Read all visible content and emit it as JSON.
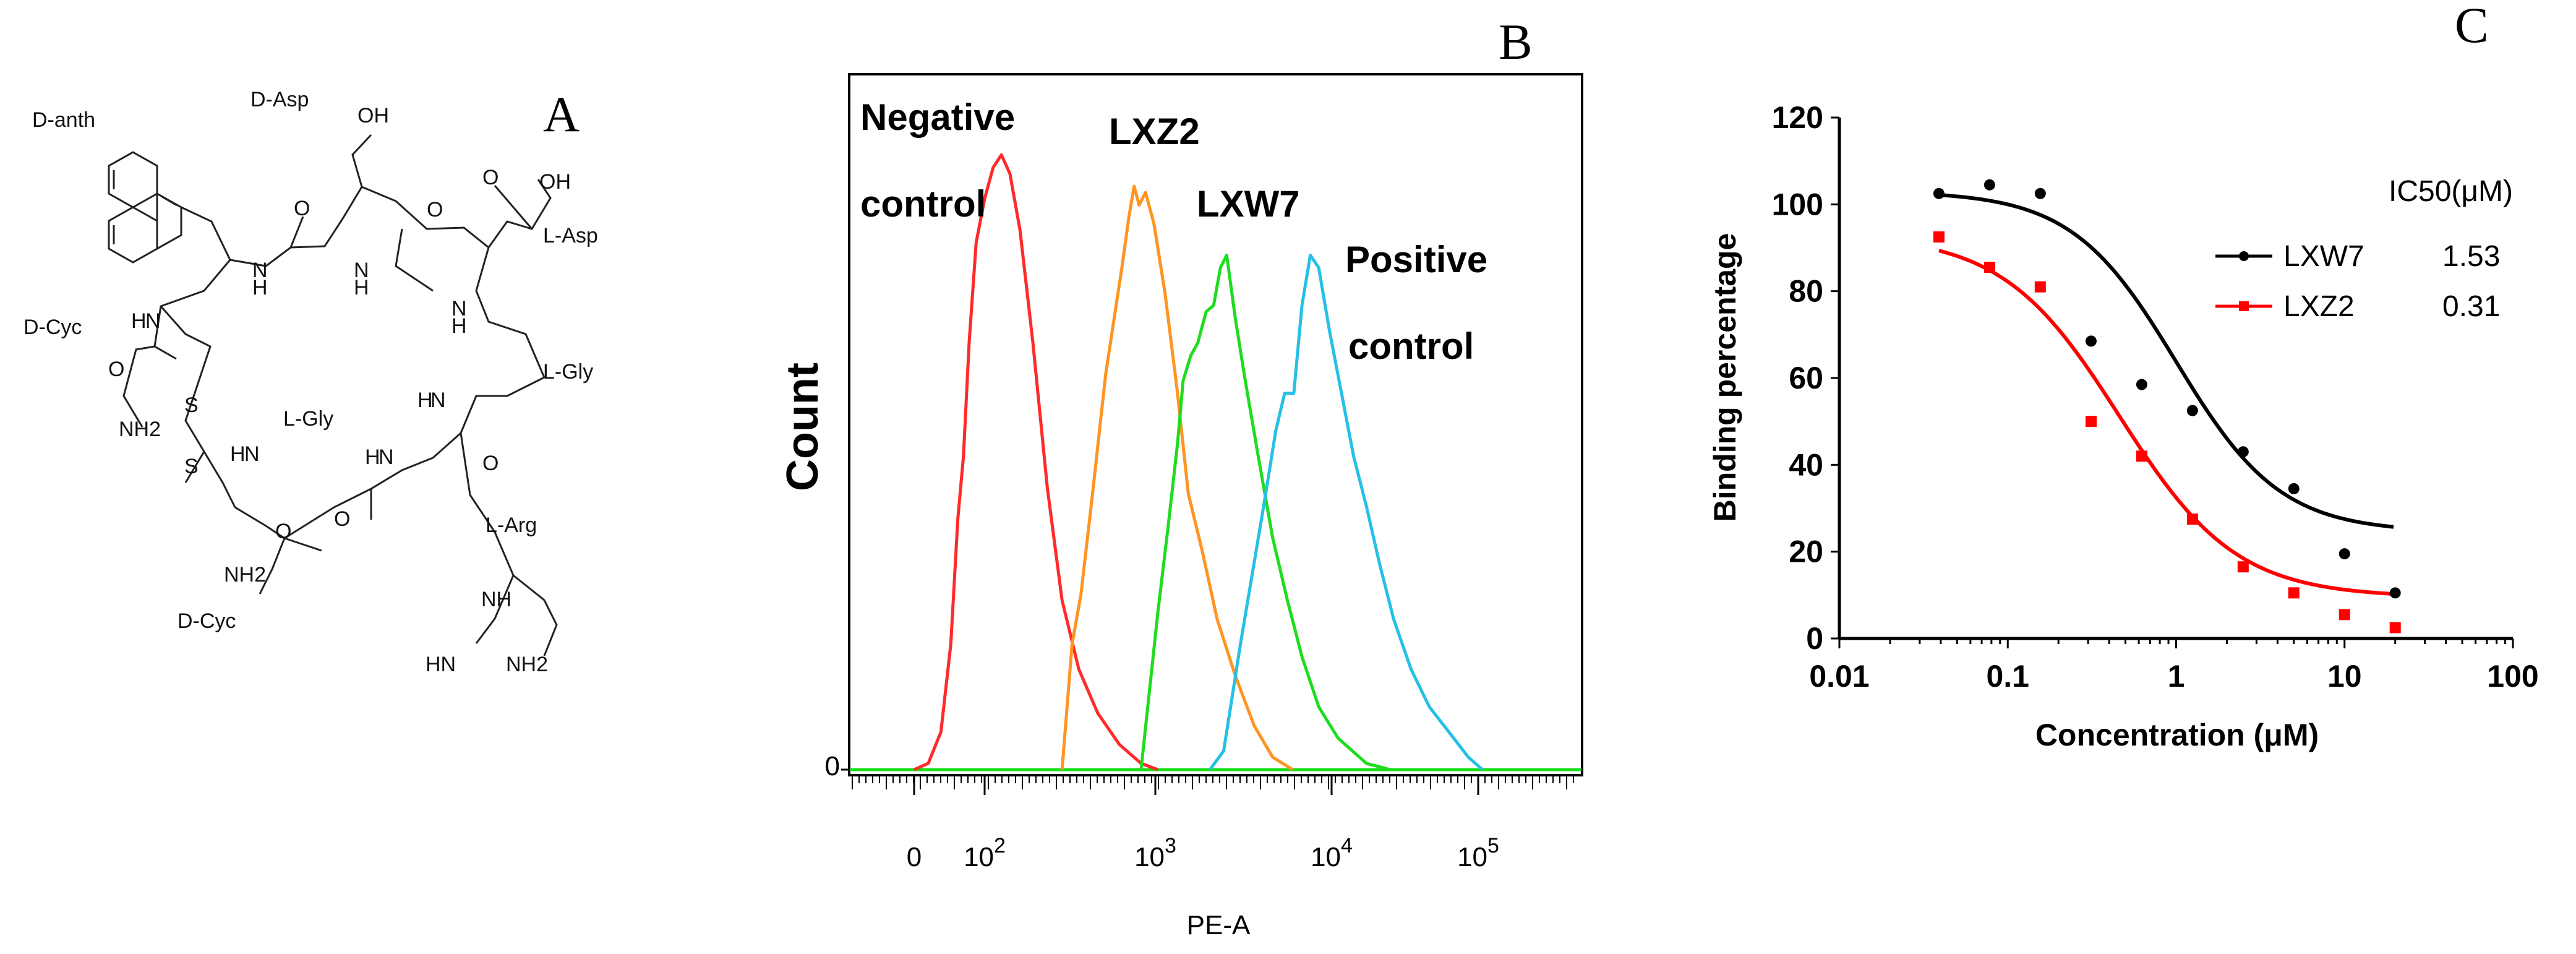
{
  "panel_a": {
    "letter": "A",
    "residues": [
      "D-anth",
      "D-Asp",
      "L-Asp",
      "D-Cyc",
      "L-Gly",
      "L-Gly",
      "L-Arg",
      "D-Cyc"
    ],
    "atoms": {
      "oh1": "OH",
      "oh2": "OH",
      "o": "O",
      "h": "H",
      "n": "N",
      "s": "S",
      "nh2": "NH2",
      "hn": "HN",
      "nh": "NH"
    }
  },
  "chart_data": [
    {
      "type": "histogram-overlay",
      "panel": "B",
      "ylabel": "Count",
      "xlabel": "PE-A",
      "x_ticks": [
        "0",
        "10^2",
        "10^3",
        "10^4",
        "10^5"
      ],
      "y_ticks": [
        "0"
      ],
      "series": [
        {
          "name": "Negative control",
          "label_lines": [
            "Negative",
            "control"
          ],
          "color": "#ff2a2a",
          "peak": 120,
          "points": [
            [
              0,
              0
            ],
            [
              20,
              0.01
            ],
            [
              38,
              0.06
            ],
            [
              52,
              0.2
            ],
            [
              62,
              0.4
            ],
            [
              70,
              0.5
            ],
            [
              78,
              0.68
            ],
            [
              88,
              0.84
            ],
            [
              100,
              0.91
            ],
            [
              112,
              0.96
            ],
            [
              125,
              0.98
            ],
            [
              140,
              0.95
            ],
            [
              160,
              0.86
            ],
            [
              190,
              0.68
            ],
            [
              230,
              0.45
            ],
            [
              280,
              0.27
            ],
            [
              350,
              0.16
            ],
            [
              450,
              0.09
            ],
            [
              600,
              0.04
            ],
            [
              800,
              0.01
            ],
            [
              1000,
              0
            ]
          ]
        },
        {
          "name": "LXZ2",
          "label_lines": [
            "LXZ2"
          ],
          "color": "#ff9422",
          "peak": 750,
          "points": [
            [
              280,
              0
            ],
            [
              320,
              0.2
            ],
            [
              360,
              0.28
            ],
            [
              420,
              0.44
            ],
            [
              500,
              0.63
            ],
            [
              560,
              0.72
            ],
            [
              620,
              0.8
            ],
            [
              680,
              0.88
            ],
            [
              730,
              0.93
            ],
            [
              780,
              0.9
            ],
            [
              850,
              0.92
            ],
            [
              950,
              0.87
            ],
            [
              1100,
              0.76
            ],
            [
              1300,
              0.6
            ],
            [
              1500,
              0.44
            ],
            [
              1800,
              0.35
            ],
            [
              2200,
              0.24
            ],
            [
              2800,
              0.15
            ],
            [
              3600,
              0.07
            ],
            [
              4600,
              0.02
            ],
            [
              6000,
              0
            ]
          ]
        },
        {
          "name": "LXW7",
          "label_lines": [
            "LXW7"
          ],
          "color": "#1fdc1f",
          "peak": 2400,
          "points": [
            [
              800,
              0
            ],
            [
              1000,
              0.25
            ],
            [
              1150,
              0.39
            ],
            [
              1300,
              0.52
            ],
            [
              1400,
              0.62
            ],
            [
              1550,
              0.66
            ],
            [
              1700,
              0.68
            ],
            [
              1900,
              0.73
            ],
            [
              2100,
              0.74
            ],
            [
              2300,
              0.8
            ],
            [
              2500,
              0.82
            ],
            [
              2800,
              0.72
            ],
            [
              3200,
              0.62
            ],
            [
              3800,
              0.5
            ],
            [
              4600,
              0.37
            ],
            [
              5600,
              0.27
            ],
            [
              6800,
              0.18
            ],
            [
              8500,
              0.1
            ],
            [
              11000,
              0.05
            ],
            [
              16000,
              0.01
            ],
            [
              22000,
              0
            ]
          ]
        },
        {
          "name": "Positive control",
          "label_lines": [
            "Positive",
            "control"
          ],
          "color": "#26c0e6",
          "peak": 7600,
          "points": [
            [
              2000,
              0
            ],
            [
              2400,
              0.03
            ],
            [
              3000,
              0.2
            ],
            [
              3600,
              0.33
            ],
            [
              4200,
              0.44
            ],
            [
              4800,
              0.54
            ],
            [
              5400,
              0.6
            ],
            [
              6100,
              0.6
            ],
            [
              6800,
              0.74
            ],
            [
              7600,
              0.82
            ],
            [
              8500,
              0.8
            ],
            [
              9800,
              0.7
            ],
            [
              11500,
              0.6
            ],
            [
              13500,
              0.5
            ],
            [
              16000,
              0.42
            ],
            [
              19000,
              0.33
            ],
            [
              23000,
              0.24
            ],
            [
              29000,
              0.16
            ],
            [
              37000,
              0.1
            ],
            [
              48000,
              0.06
            ],
            [
              62000,
              0.02
            ],
            [
              75000,
              0
            ]
          ]
        }
      ]
    },
    {
      "type": "scatter",
      "panel": "C",
      "ylabel": "Binding percentage",
      "xlabel": "Concentration (μM)",
      "xlim": [
        0.01,
        100
      ],
      "ylim": [
        0,
        120
      ],
      "x_ticks": [
        "0.01",
        "0.1",
        "1",
        "10",
        "100"
      ],
      "y_ticks": [
        "0",
        "20",
        "40",
        "60",
        "80",
        "100",
        "120"
      ],
      "legend_title": "IC50(μM)",
      "series": [
        {
          "name": "LXW7",
          "ic50": "1.53",
          "color": "#000000",
          "marker": "circle",
          "x": [
            0.039,
            0.078,
            0.156,
            0.3125,
            0.625,
            1.25,
            2.5,
            5,
            10,
            20
          ],
          "y": [
            102.5,
            104.5,
            102.5,
            68.5,
            58.5,
            52.5,
            43,
            34.5,
            19.5,
            10.5
          ],
          "fit": {
            "top": 103,
            "bottom": 24.5,
            "ic50": 1.0,
            "hill": 1.4
          }
        },
        {
          "name": "LXZ2",
          "ic50": "0.31",
          "color": "#ff0000",
          "marker": "square",
          "x": [
            0.039,
            0.078,
            0.156,
            0.3125,
            0.625,
            1.25,
            2.5,
            5,
            10,
            20
          ],
          "y": [
            92.5,
            85.5,
            81,
            50,
            42,
            27.5,
            16.5,
            10.5,
            5.5,
            2.5
          ],
          "fit": {
            "top": 93,
            "bottom": 9.5,
            "ic50": 0.46,
            "hill": 1.25
          }
        }
      ]
    }
  ]
}
